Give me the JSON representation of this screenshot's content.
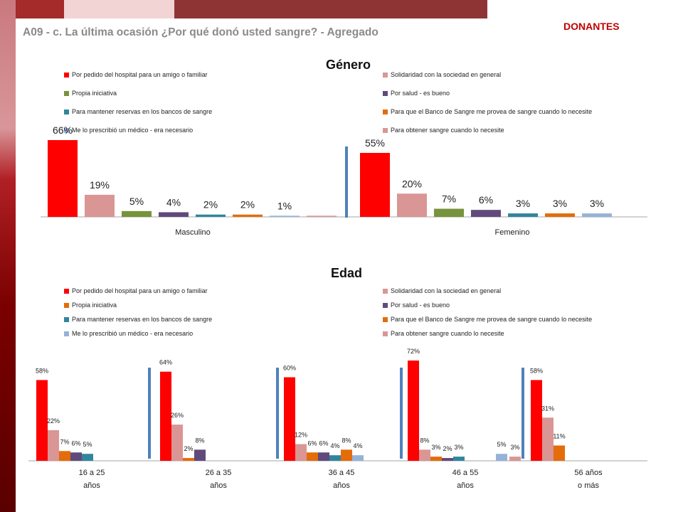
{
  "header": {
    "title": "A09 - c. La última ocasión ¿Por qué donó usted sangre? - Agregado",
    "tag": "DONANTES"
  },
  "colors": {
    "topbar": [
      "#a52a2a",
      "#f2d4d4",
      "#8f3434"
    ],
    "leftbar": [
      "#7a0000",
      "#d9969a"
    ],
    "axis": "#a6a6a6",
    "separator": "#4f81bd"
  },
  "chart_data": [
    {
      "type": "bar",
      "title": "Género",
      "categories": [
        "Masculino",
        "Femenino"
      ],
      "legend": [
        {
          "label": "Por pedido del hospital para un amigo o familiar",
          "color": "#ff0000"
        },
        {
          "label": "Solidaridad con la sociedad en general",
          "color": "#d99694"
        },
        {
          "label": "Propia iniciativa",
          "color": "#77933c"
        },
        {
          "label": "Por salud - es bueno",
          "color": "#604a7b"
        },
        {
          "label": "Para mantener reservas en los bancos de sangre",
          "color": "#31859c"
        },
        {
          "label": "Para que el Banco de Sangre me provea de sangre cuando lo necesite",
          "color": "#e46c0a"
        },
        {
          "label": "Me lo prescribió un médico - era necesario",
          "color": "#95b3d7"
        },
        {
          "label": "Para obtener sangre cuando lo necesite",
          "color": "#d99694"
        }
      ],
      "series": [
        {
          "name": "Por pedido del hospital para un amigo o familiar",
          "values": [
            66,
            55
          ],
          "labels": [
            "66%",
            "55%"
          ]
        },
        {
          "name": "Solidaridad con la sociedad en general",
          "values": [
            19,
            20
          ],
          "labels": [
            "19%",
            "20%"
          ]
        },
        {
          "name": "Propia iniciativa",
          "values": [
            5,
            7
          ],
          "labels": [
            "5%",
            "7%"
          ]
        },
        {
          "name": "Por salud - es bueno",
          "values": [
            4,
            6
          ],
          "labels": [
            "4%",
            "6%"
          ]
        },
        {
          "name": "Para mantener reservas en los bancos de sangre",
          "values": [
            2,
            3
          ],
          "labels": [
            "2%",
            "3%"
          ]
        },
        {
          "name": "Para que el Banco de Sangre me provea de sangre cuando lo necesite",
          "values": [
            2,
            3
          ],
          "labels": [
            "2%",
            "3%"
          ]
        },
        {
          "name": "Me lo prescribió un médico - era necesario",
          "values": [
            1,
            3
          ],
          "labels": [
            "1%",
            "3%"
          ]
        },
        {
          "name": "Para obtener sangre cuando lo necesite",
          "values": [
            1,
            null
          ],
          "labels": [
            "",
            ""
          ]
        }
      ],
      "ylim": [
        0,
        70
      ],
      "grid": false,
      "legend_position": "top"
    },
    {
      "type": "bar",
      "title": "Edad",
      "categories": [
        "16 a 25\naños",
        "26 a 35\naños",
        "36 a 45\naños",
        "46 a 55\naños",
        "56 años\no más"
      ],
      "legend": [
        {
          "label": "Por pedido del hospital para un amigo o familiar",
          "color": "#ff0000"
        },
        {
          "label": "Solidaridad con la sociedad en general",
          "color": "#d99694"
        },
        {
          "label": "Propia iniciativa",
          "color": "#e46c0a"
        },
        {
          "label": "Por salud - es bueno",
          "color": "#604a7b"
        },
        {
          "label": "Para mantener reservas en los bancos de sangre",
          "color": "#31859c"
        },
        {
          "label": "Para que el Banco de Sangre me provea de sangre cuando lo necesite",
          "color": "#e46c0a"
        },
        {
          "label": "Me lo prescribió un médico - era necesario",
          "color": "#95b3d7"
        },
        {
          "label": "Para obtener sangre cuando lo necesite",
          "color": "#d99694"
        }
      ],
      "series": [
        {
          "name": "Por pedido del hospital para un amigo o familiar",
          "values": [
            58,
            64,
            60,
            72,
            58
          ],
          "labels": [
            "58%",
            "64%",
            "60%",
            "72%",
            "58%"
          ]
        },
        {
          "name": "Solidaridad con la sociedad en general",
          "values": [
            22,
            26,
            12,
            8,
            31
          ],
          "labels": [
            "22%",
            "26%",
            "12%",
            "8%",
            "31%"
          ]
        },
        {
          "name": "Propia iniciativa",
          "values": [
            7,
            2,
            6,
            3,
            11
          ],
          "labels": [
            "7%",
            "2%",
            "6%",
            "3%",
            "11%"
          ]
        },
        {
          "name": "Por salud - es bueno",
          "values": [
            6,
            8,
            6,
            2,
            null
          ],
          "labels": [
            "6%",
            "8%",
            "6%",
            "2%",
            ""
          ]
        },
        {
          "name": "Para mantener reservas en los bancos de sangre",
          "values": [
            5,
            null,
            4,
            3,
            null
          ],
          "labels": [
            "5%",
            "",
            "4%",
            "3%",
            ""
          ]
        },
        {
          "name": "Para que el Banco de Sangre me provea de sangre cuando lo necesite",
          "values": [
            null,
            null,
            8,
            null,
            null
          ],
          "labels": [
            "",
            "",
            "8%",
            "",
            ""
          ]
        },
        {
          "name": "Me lo prescribió un médico - era necesario",
          "values": [
            null,
            null,
            4,
            5,
            null
          ],
          "labels": [
            "",
            "",
            "4%",
            "5%",
            ""
          ]
        },
        {
          "name": "Para obtener sangre cuando lo necesite",
          "values": [
            null,
            null,
            null,
            3,
            null
          ],
          "labels": [
            "",
            "",
            "",
            "3%",
            ""
          ]
        }
      ],
      "ylim": [
        0,
        80
      ],
      "grid": false,
      "legend_position": "top"
    }
  ]
}
